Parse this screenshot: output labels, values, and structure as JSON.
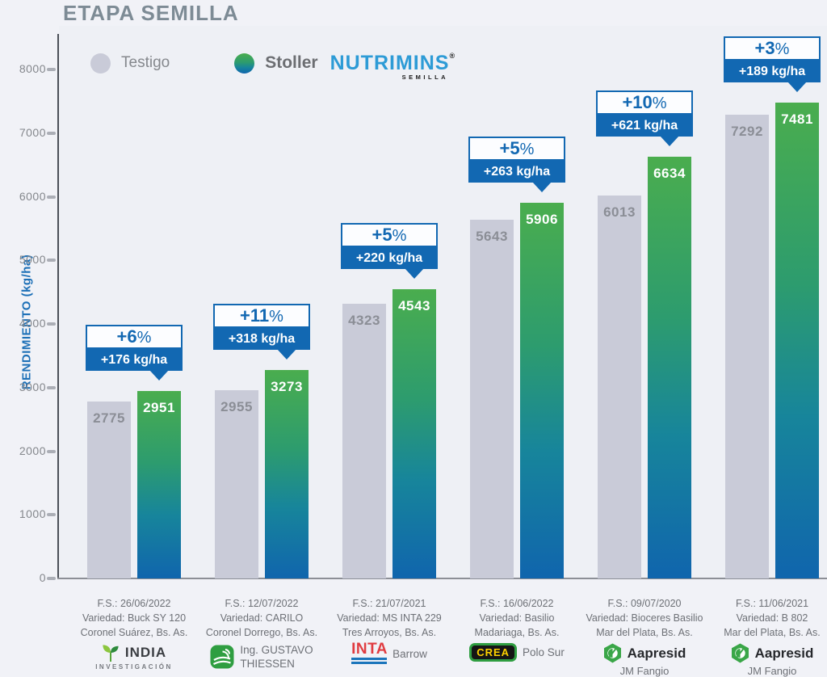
{
  "title": "ETAPA SEMILLA",
  "legend": {
    "testigo": "Testigo",
    "stoller": "Stoller",
    "nutrimins": "NUTRIMINS",
    "nutrimins_sub": "SEMILLA",
    "reg": "®"
  },
  "colors": {
    "background": "#f1f2f7",
    "testigo_bar": "#c9cbd8",
    "stoller_gradient_top": "#4aad4e",
    "stoller_gradient_bottom": "#1065ad",
    "callout_blue": "#1268b2",
    "title_gray": "#7d8b95",
    "nutrimins_blue": "#2d9bd6"
  },
  "chart_data": {
    "type": "bar",
    "title": "ETAPA SEMILLA",
    "ylabel": "RENDIMIENTO (kg/ha)",
    "ylim": [
      0,
      8000
    ],
    "yticks": [
      0,
      1000,
      2000,
      3000,
      4000,
      5000,
      6000,
      7000,
      8000
    ],
    "grid": false,
    "legend_position": "top-left",
    "pct_sign": "%",
    "series": [
      {
        "name": "Testigo",
        "color": "#c9cbd8",
        "values": [
          2775,
          2955,
          4323,
          5643,
          6013,
          7292
        ]
      },
      {
        "name": "Stoller NUTRIMINS SEMILLA",
        "color": "green-to-blue-gradient",
        "values": [
          2951,
          3273,
          4543,
          5906,
          6634,
          7481
        ]
      }
    ],
    "categories": [
      "F.S.: 26/06/2022 · Variedad: Buck SY 120 · Coronel Suárez, Bs. As.",
      "F.S.: 12/07/2022 · Variedad: CARILO · Coronel Dorrego, Bs. As.",
      "F.S.: 21/07/2021 · Variedad: MS INTA 229 · Tres Arroyos, Bs. As.",
      "F.S.: 16/06/2022 · Variedad: Basilio · Madariaga, Bs. As.",
      "F.S.: 09/07/2020 · Variedad: Bioceres Basilio · Mar del Plata, Bs. As.",
      "F.S.: 11/06/2021 · Variedad: B 802 · Mar del Plata, Bs. As."
    ],
    "groups": [
      {
        "fs": "F.S.: 26/06/2022",
        "variety": "Variedad: Buck SY 120",
        "location": "Coronel Suárez, Bs. As.",
        "gain_pct": "+6",
        "gain_kg": "+176 kg/ha",
        "org": {
          "type": "india",
          "name": "INDIA",
          "sub": "INVESTIGACIÓN"
        }
      },
      {
        "fs": "F.S.: 12/07/2022",
        "variety": "Variedad: CARILO",
        "location": "Coronel Dorrego, Bs. As.",
        "gain_pct": "+11",
        "gain_kg": "+318 kg/ha",
        "org": {
          "type": "thiessen",
          "lines": [
            "Ing. GUSTAVO",
            "THIESSEN"
          ]
        }
      },
      {
        "fs": "F.S.: 21/07/2021",
        "variety": "Variedad: MS INTA 229",
        "location": "Tres Arroyos, Bs. As.",
        "gain_pct": "+5",
        "gain_kg": "+220 kg/ha",
        "org": {
          "type": "inta",
          "logo_text": "INTA",
          "name": "Barrow"
        }
      },
      {
        "fs": "F.S.: 16/06/2022",
        "variety": "Variedad: Basilio",
        "location": "Madariaga, Bs. As.",
        "gain_pct": "+5",
        "gain_kg": "+263 kg/ha",
        "org": {
          "type": "crea",
          "logo_text": "CREA",
          "name": "Polo Sur"
        }
      },
      {
        "fs": "F.S.: 09/07/2020",
        "variety": "Variedad: Bioceres Basilio",
        "location": "Mar del Plata, Bs. As.",
        "gain_pct": "+10",
        "gain_kg": "+621 kg/ha",
        "org": {
          "type": "aapresid",
          "name": "Aapresid",
          "sub": "JM Fangio"
        }
      },
      {
        "fs": "F.S.: 11/06/2021",
        "variety": "Variedad: B 802",
        "location": "Mar del Plata, Bs. As.",
        "gain_pct": "+3",
        "gain_kg": "+189 kg/ha",
        "org": {
          "type": "aapresid",
          "name": "Aapresid",
          "sub": "JM Fangio"
        }
      }
    ]
  }
}
